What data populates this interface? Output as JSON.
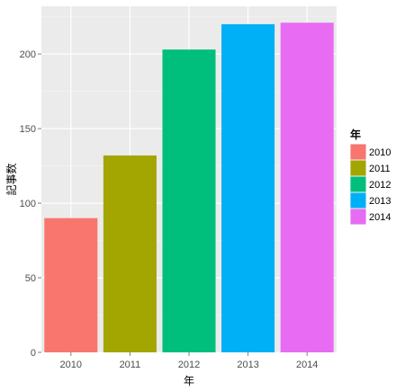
{
  "chart_data": {
    "type": "bar",
    "categories": [
      "2010",
      "2011",
      "2012",
      "2013",
      "2014"
    ],
    "values": [
      90,
      132,
      203,
      220,
      221
    ],
    "xlabel": "年",
    "ylabel": "記事数",
    "ylim": [
      0,
      232
    ],
    "yticks": [
      0,
      50,
      100,
      150,
      200
    ],
    "grid": true,
    "legend": {
      "title": "年",
      "placement": "right",
      "entries": [
        "2010",
        "2011",
        "2012",
        "2013",
        "2014"
      ]
    },
    "colors": [
      "#F8766D",
      "#A3A500",
      "#00BF7D",
      "#00B0F6",
      "#E76BF3"
    ],
    "panel_background": "#EBEBEB",
    "grid_color": "#FFFFFF"
  }
}
